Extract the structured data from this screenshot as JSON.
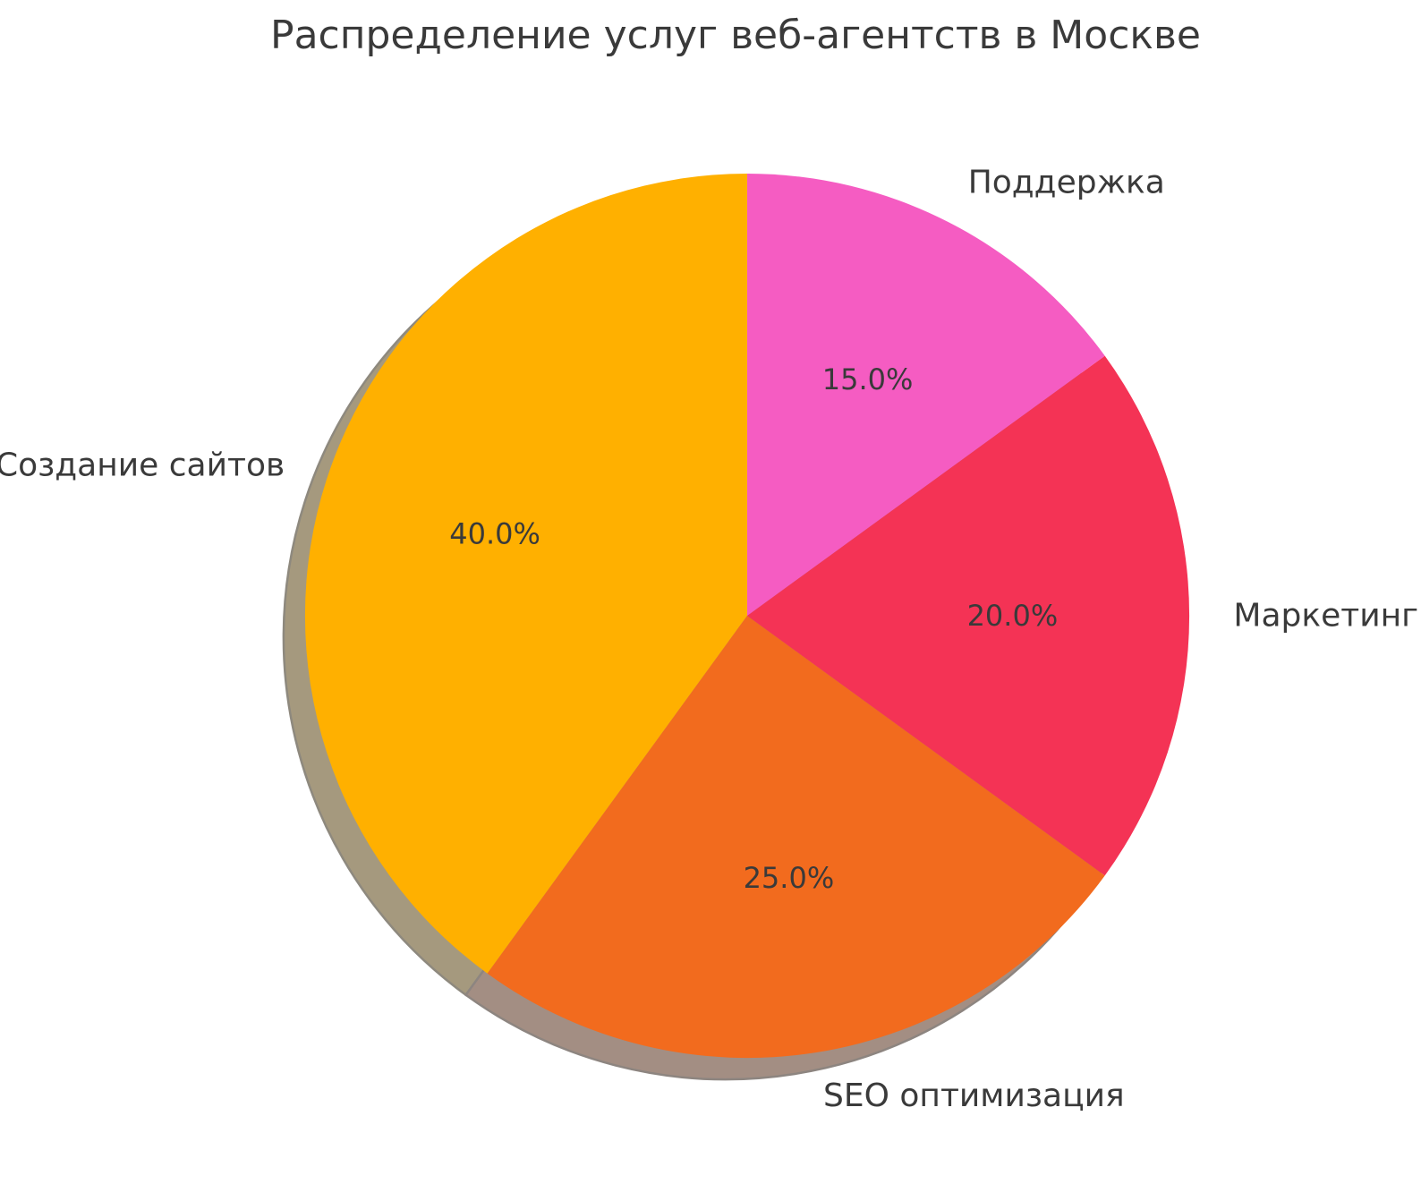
{
  "chart_data": {
    "type": "pie",
    "title": "Распределение услуг веб-агентств в Москве",
    "categories": [
      "Создание сайтов",
      "SEO оптимизация",
      "Маркетинг",
      "Поддержка"
    ],
    "values": [
      40.0,
      25.0,
      20.0,
      15.0
    ],
    "pct_labels": [
      "40.0%",
      "25.0%",
      "20.0%",
      "15.0%"
    ],
    "colors": [
      "#ffb000",
      "#f26b1e",
      "#f43355",
      "#f55cc2"
    ],
    "start_angle": 90,
    "counterclock": true,
    "shadow": true,
    "pct_distance": 0.6,
    "label_distance": 1.1,
    "legend": "none",
    "title_color": "#3a3a3a",
    "label_color": "#3a3a3a"
  }
}
